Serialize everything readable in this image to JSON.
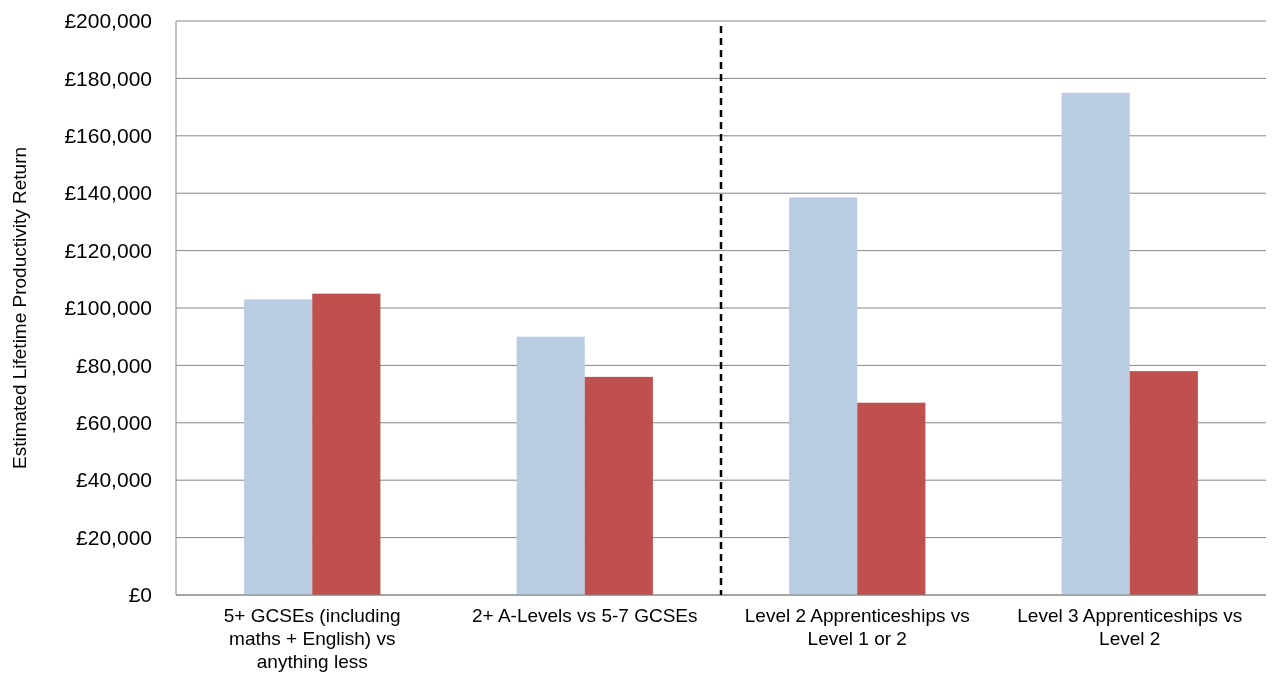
{
  "chart_data": {
    "type": "bar",
    "ylabel": "Estimated Lifetime Productivity Return",
    "categories": [
      "5+ GCSEs (including maths + English) vs anything less",
      "2+ A-Levels vs 5-7 GCSEs",
      "Level 2 Apprenticeships vs Level 1 or 2",
      "Level 3 Apprenticeships vs Level 2"
    ],
    "series": [
      {
        "color": "#b9cce4",
        "values": [
          103000,
          90000,
          138500,
          175000
        ]
      },
      {
        "color": "#c0504d",
        "values": [
          105000,
          76000,
          67000,
          78000
        ]
      }
    ],
    "ylim": [
      0,
      200000
    ],
    "yticks": [
      {
        "value": 0,
        "label": "£0"
      },
      {
        "value": 20000,
        "label": "£20,000"
      },
      {
        "value": 40000,
        "label": "£40,000"
      },
      {
        "value": 60000,
        "label": "£60,000"
      },
      {
        "value": 80000,
        "label": "£80,000"
      },
      {
        "value": 100000,
        "label": "£100,000"
      },
      {
        "value": 120000,
        "label": "£120,000"
      },
      {
        "value": 140000,
        "label": "£140,000"
      },
      {
        "value": 160000,
        "label": "£160,000"
      },
      {
        "value": 180000,
        "label": "£180,000"
      },
      {
        "value": 200000,
        "label": "£200,000"
      }
    ],
    "grid": "y"
  }
}
